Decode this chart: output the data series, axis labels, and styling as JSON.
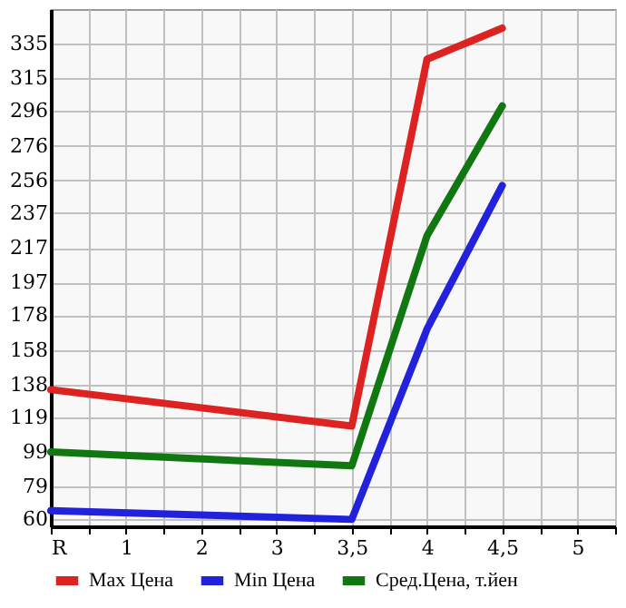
{
  "chart_data": {
    "type": "line",
    "categories": [
      "R",
      "1",
      "2",
      "3",
      "3,5",
      "4",
      "4,5",
      "5"
    ],
    "series": [
      {
        "name": "Max Цена",
        "color": "#dd2222",
        "values": [
          135,
          null,
          null,
          null,
          114,
          326,
          344,
          null
        ]
      },
      {
        "name": "Min Цена",
        "color": "#2222dd",
        "values": [
          65,
          null,
          null,
          null,
          60,
          170,
          253,
          null
        ]
      },
      {
        "name": "Сред.Цена, т.йен",
        "color": "#117711",
        "values": [
          99,
          null,
          null,
          null,
          91,
          224,
          299,
          null
        ]
      }
    ],
    "ylim": [
      56,
      355
    ],
    "yticks": [
      60,
      79,
      99,
      119,
      138,
      158,
      178,
      197,
      217,
      237,
      256,
      276,
      296,
      315,
      335
    ],
    "grid": true,
    "legend": "bottom",
    "marker": "none",
    "line_style": "solid"
  }
}
